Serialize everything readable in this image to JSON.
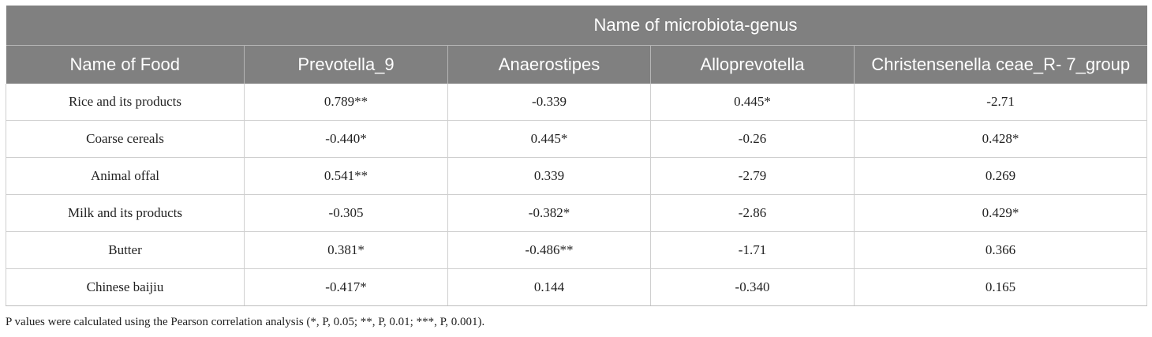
{
  "table": {
    "group_header": "Name of microbiota-genus",
    "columns": [
      "Name of Food",
      "Prevotella_9",
      "Anaerostipes",
      "Alloprevotella",
      "Christensenella ceae_R- 7_group"
    ],
    "rows": [
      [
        "Rice and its products",
        "0.789**",
        "-0.339",
        "0.445*",
        "-2.71"
      ],
      [
        "Coarse cereals",
        "-0.440*",
        "0.445*",
        "-0.26",
        "0.428*"
      ],
      [
        "Animal offal",
        "0.541**",
        "0.339",
        "-2.79",
        "0.269"
      ],
      [
        "Milk and its products",
        "-0.305",
        "-0.382*",
        "-2.86",
        "0.429*"
      ],
      [
        "Butter",
        "0.381*",
        "-0.486**",
        "-1.71",
        "0.366"
      ],
      [
        "Chinese baijiu",
        "-0.417*",
        "0.144",
        "-0.340",
        "0.165"
      ]
    ]
  },
  "footnote": "P values were calculated using the Pearson correlation analysis (*, P, 0.05; **, P, 0.01; ***, P, 0.001).",
  "colors": {
    "header_bg": "#808080",
    "header_text": "#ffffff",
    "border": "#cfcfcf"
  }
}
